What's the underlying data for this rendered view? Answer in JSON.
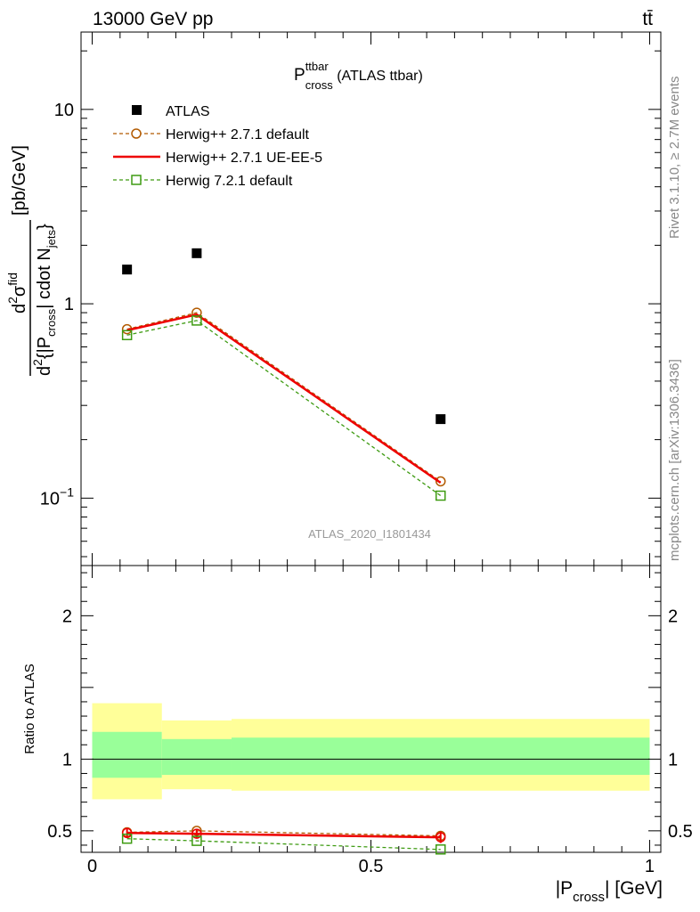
{
  "header": {
    "energy_label": "13000 GeV pp",
    "process_label": "tt̄"
  },
  "side_text": {
    "rivet": "Rivet 3.1.10, ≥ 2.7M events",
    "mcplots": "mcplots.cern.ch [arXiv:1306.3436]"
  },
  "chart_data": [
    {
      "type": "scatter",
      "title_main": "P",
      "title_sup": "ttbar",
      "title_sub": "cross",
      "title_rest": " (ATLAS ttbar)",
      "analysis_label": "ATLAS_2020_I1801434",
      "ylabel": {
        "num_d": "d",
        "num_sup": "2",
        "num_sigma": "σ",
        "num_sigma_sup": "fid",
        "den_d": "d",
        "den_sup": "2",
        "den_body": "{|P",
        "den_sub1": "cross",
        "den_mid": "| cdot N",
        "den_sub2": "jets",
        "den_end": "}",
        "unit": "[pb/GeV]"
      },
      "yscale": "log",
      "ylim": [
        0.045,
        25
      ],
      "xlim": [
        -0.02,
        1.02
      ],
      "y_ticks": [
        {
          "value": 0.1,
          "base": "10",
          "exp": "−1"
        },
        {
          "value": 1,
          "base": "1",
          "exp": ""
        },
        {
          "value": 10,
          "base": "10",
          "exp": ""
        }
      ],
      "legend_position": "top-left",
      "series": [
        {
          "name": "ATLAS",
          "marker": "filled-square",
          "color": "#000000",
          "x": [
            0.0625,
            0.1875,
            0.625
          ],
          "y": [
            1.5,
            1.82,
            0.255
          ]
        },
        {
          "name": "Herwig++ 2.7.1 default",
          "marker": "open-circle",
          "line": "dashed",
          "color": "#b25a00",
          "x": [
            0.0625,
            0.1875,
            0.625
          ],
          "y": [
            0.74,
            0.9,
            0.122
          ]
        },
        {
          "name": "Herwig++ 2.7.1 UE-EE-5",
          "marker": "none",
          "line": "solid",
          "color": "#ee0000",
          "x": [
            0.0625,
            0.1875,
            0.625
          ],
          "y": [
            0.73,
            0.88,
            0.12
          ]
        },
        {
          "name": "Herwig 7.2.1 default",
          "marker": "open-square",
          "line": "dashed",
          "color": "#3e9b12",
          "x": [
            0.0625,
            0.1875,
            0.625
          ],
          "y": [
            0.69,
            0.82,
            0.103
          ]
        }
      ]
    },
    {
      "type": "line",
      "ylabel": "Ratio to ATLAS",
      "xlabel_main": "|P",
      "xlabel_sub": "cross",
      "xlabel_rest": "| [GeV]",
      "ylim": [
        0.35,
        2.35
      ],
      "xlim": [
        -0.02,
        1.02
      ],
      "x_ticks": [
        {
          "value": 0,
          "label": "0"
        },
        {
          "value": 0.5,
          "label": "0.5"
        },
        {
          "value": 1,
          "label": "1"
        }
      ],
      "y_ticks": [
        {
          "value": 0.5,
          "label": "0.5"
        },
        {
          "value": 1,
          "label": "1"
        },
        {
          "value": 2,
          "label": "2"
        }
      ],
      "bands": [
        {
          "x0": 0.0,
          "x1": 0.125,
          "yellow": [
            0.72,
            1.39
          ],
          "green": [
            0.87,
            1.19
          ]
        },
        {
          "x0": 0.125,
          "x1": 0.25,
          "yellow": [
            0.79,
            1.27
          ],
          "green": [
            0.89,
            1.14
          ]
        },
        {
          "x0": 0.25,
          "x1": 1.0,
          "yellow": [
            0.78,
            1.28
          ],
          "green": [
            0.89,
            1.15
          ]
        }
      ],
      "series": [
        {
          "name": "Herwig++ 2.7.1 default",
          "marker": "open-circle",
          "line": "dashed",
          "color": "#b25a00",
          "x": [
            0.0625,
            0.1875,
            0.625
          ],
          "y": [
            0.49,
            0.5,
            0.465
          ]
        },
        {
          "name": "Herwig++ 2.7.1 UE-EE-5",
          "marker": "open-circle",
          "line": "solid",
          "color": "#ee0000",
          "x": [
            0.0625,
            0.1875,
            0.625
          ],
          "y": [
            0.485,
            0.48,
            0.455
          ],
          "err": [
            0.03,
            0.03,
            0.04
          ]
        },
        {
          "name": "Herwig 7.2.1 default",
          "marker": "open-square",
          "line": "dashed",
          "color": "#3e9b12",
          "x": [
            0.0625,
            0.1875,
            0.625
          ],
          "y": [
            0.445,
            0.43,
            0.37
          ]
        }
      ]
    }
  ]
}
